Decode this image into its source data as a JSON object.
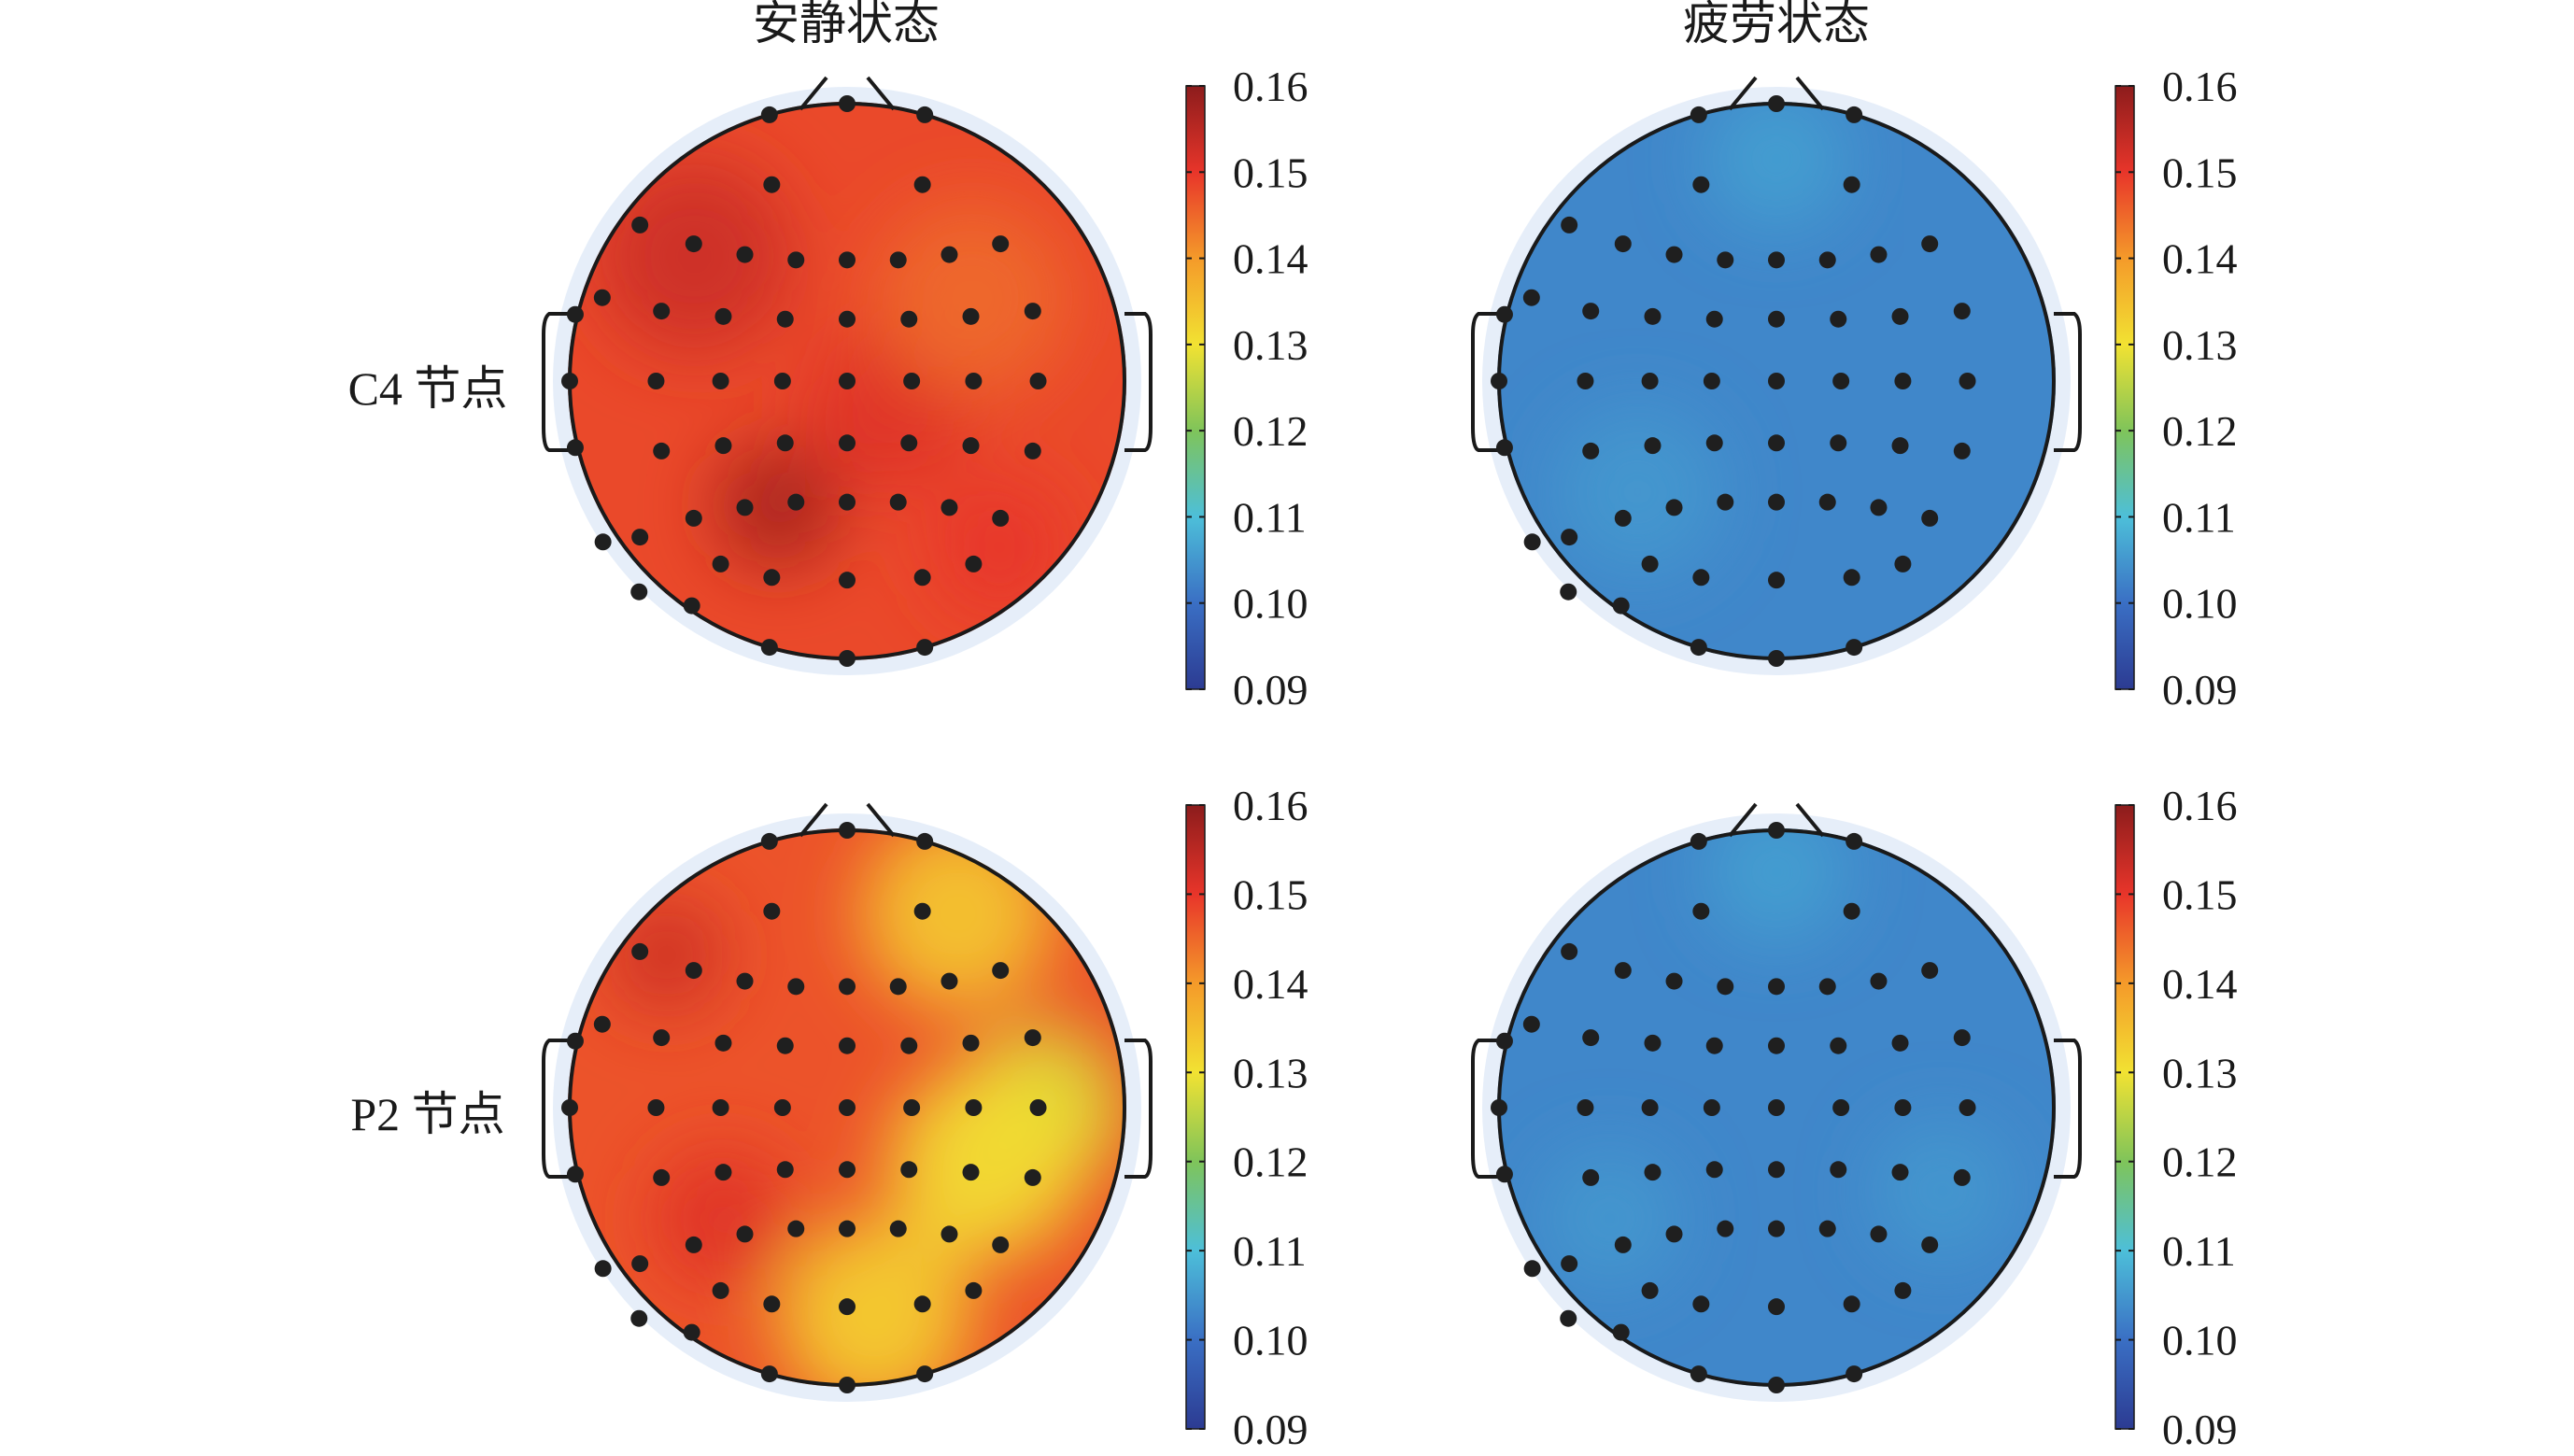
{
  "chart_data": {
    "type": "heatmap",
    "columns": [
      "安静状态",
      "疲劳状态"
    ],
    "rows": [
      "C4 节点",
      "P2 节点"
    ],
    "colorbar": {
      "range": [
        0.09,
        0.16
      ],
      "ticks": [
        "0.16",
        "0.15",
        "0.14",
        "0.13",
        "0.12",
        "0.11",
        "0.10",
        "0.09"
      ],
      "colormap": [
        "#2c3b92",
        "#3a6fc4",
        "#4dbfd9",
        "#7fc45a",
        "#f2e232",
        "#f49a2a",
        "#e8352a",
        "#8c1c1c"
      ]
    },
    "panels": [
      {
        "row": "C4 节点",
        "column": "安静状态",
        "base": 0.148,
        "hotspots": [
          {
            "x": -0.55,
            "y": -0.45,
            "value": 0.153,
            "r": 0.35
          },
          {
            "x": -0.25,
            "y": 0.45,
            "value": 0.157,
            "r": 0.22
          },
          {
            "x": 0.15,
            "y": 0.1,
            "value": 0.151,
            "r": 0.3
          },
          {
            "x": 0.45,
            "y": -0.3,
            "value": 0.145,
            "r": 0.35
          },
          {
            "x": 0.55,
            "y": 0.6,
            "value": 0.15,
            "r": 0.25
          }
        ]
      },
      {
        "row": "C4 节点",
        "column": "疲劳状态",
        "base": 0.103,
        "hotspots": [
          {
            "x": 0.0,
            "y": -0.8,
            "value": 0.106,
            "r": 0.25
          },
          {
            "x": -0.5,
            "y": 0.4,
            "value": 0.105,
            "r": 0.3
          }
        ]
      },
      {
        "row": "P2 节点",
        "column": "安静状态",
        "base": 0.147,
        "hotspots": [
          {
            "x": 0.4,
            "y": -0.7,
            "value": 0.134,
            "r": 0.35
          },
          {
            "x": 0.7,
            "y": 0.0,
            "value": 0.128,
            "r": 0.3
          },
          {
            "x": 0.5,
            "y": 0.2,
            "value": 0.131,
            "r": 0.35
          },
          {
            "x": 0.1,
            "y": 0.75,
            "value": 0.133,
            "r": 0.35
          },
          {
            "x": -0.65,
            "y": -0.55,
            "value": 0.153,
            "r": 0.2
          },
          {
            "x": -0.45,
            "y": 0.4,
            "value": 0.151,
            "r": 0.25
          }
        ]
      },
      {
        "row": "P2 节点",
        "column": "疲劳状态",
        "base": 0.103,
        "hotspots": [
          {
            "x": 0.0,
            "y": -0.85,
            "value": 0.106,
            "r": 0.25
          },
          {
            "x": -0.6,
            "y": 0.4,
            "value": 0.105,
            "r": 0.25
          },
          {
            "x": 0.6,
            "y": 0.3,
            "value": 0.105,
            "r": 0.25
          }
        ]
      }
    ],
    "electrodes": [
      [
        -0.28,
        -0.96
      ],
      [
        0.0,
        -1.0
      ],
      [
        0.28,
        -0.96
      ],
      [
        -0.28,
        -0.73
      ],
      [
        0.28,
        -0.73
      ],
      [
        -0.77,
        -0.58
      ],
      [
        -0.57,
        -0.51
      ],
      [
        -0.38,
        -0.47
      ],
      [
        -0.19,
        -0.45
      ],
      [
        0.0,
        -0.45
      ],
      [
        0.19,
        -0.45
      ],
      [
        0.38,
        -0.47
      ],
      [
        0.57,
        -0.51
      ],
      [
        -0.91,
        -0.31
      ],
      [
        -0.69,
        -0.26
      ],
      [
        -0.46,
        -0.24
      ],
      [
        -0.23,
        -0.23
      ],
      [
        0.0,
        -0.23
      ],
      [
        0.23,
        -0.23
      ],
      [
        0.46,
        -0.24
      ],
      [
        0.69,
        -0.26
      ],
      [
        -0.71,
        0.0
      ],
      [
        -0.47,
        0.0
      ],
      [
        -0.24,
        0.0
      ],
      [
        0.0,
        0.0
      ],
      [
        0.24,
        0.0
      ],
      [
        0.47,
        0.0
      ],
      [
        0.71,
        0.0
      ],
      [
        -0.69,
        0.26
      ],
      [
        -0.46,
        0.24
      ],
      [
        -0.23,
        0.23
      ],
      [
        0.0,
        0.23
      ],
      [
        0.23,
        0.23
      ],
      [
        0.46,
        0.24
      ],
      [
        0.69,
        0.26
      ],
      [
        -0.57,
        0.51
      ],
      [
        -0.38,
        0.47
      ],
      [
        -0.19,
        0.45
      ],
      [
        0.0,
        0.45
      ],
      [
        0.19,
        0.45
      ],
      [
        0.38,
        0.47
      ],
      [
        0.57,
        0.51
      ],
      [
        -0.47,
        0.68
      ],
      [
        -0.28,
        0.73
      ],
      [
        0.0,
        0.74
      ],
      [
        0.28,
        0.73
      ],
      [
        0.47,
        0.68
      ],
      [
        -0.77,
        0.58
      ],
      [
        -0.56,
        0.81
      ],
      [
        -0.28,
        0.96
      ],
      [
        0.0,
        1.0
      ],
      [
        0.28,
        0.96
      ],
      [
        -1.0,
        0.0
      ],
      [
        -0.98,
        0.24
      ],
      [
        -0.98,
        -0.24
      ],
      [
        -0.88,
        0.58
      ],
      [
        -0.75,
        0.76
      ]
    ]
  }
}
